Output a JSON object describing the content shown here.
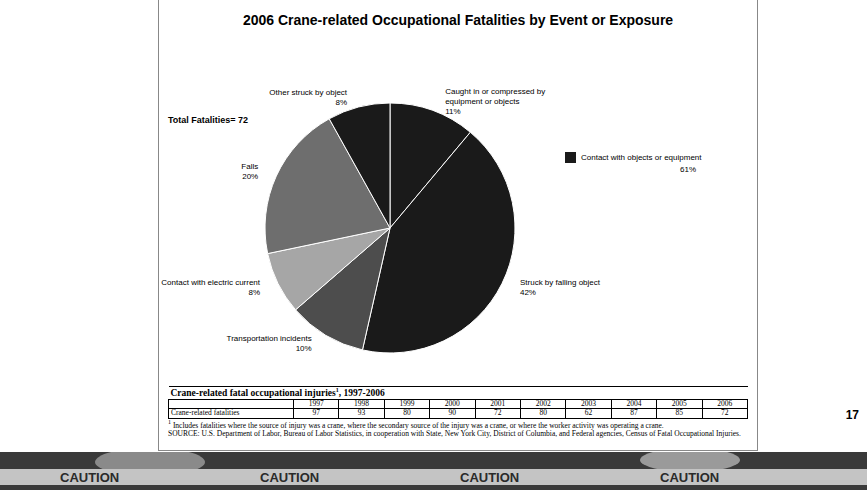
{
  "chart_data": {
    "type": "pie",
    "title": "2006 Crane-related Occupational Fatalities by Event or Exposure",
    "categories": [
      "Caught in or compressed by equipment or objects",
      "Struck by falling object",
      "Transportation incidents",
      "Contact with electric current",
      "Falls",
      "Other struck by object"
    ],
    "values": [
      11,
      42,
      10,
      8,
      20,
      8
    ],
    "value_labels": [
      "11%",
      "42%",
      "10%",
      "8%",
      "20%",
      "8%"
    ],
    "colors": [
      "#1a1a1a",
      "#1a1a1a",
      "#4d4d4d",
      "#a6a6a6",
      "#6e6e6e",
      "#1a1a1a"
    ],
    "data_labels": true,
    "annotations": [
      {
        "text": "Total Fatalities= 72"
      },
      {
        "text": "Contact with objects or equipment",
        "subtext": "61%",
        "color": "#1a1a1a"
      }
    ]
  },
  "table": {
    "title": "Crane-related fatal occupational injuries",
    "title_note": "1",
    "title_end": ", 1997-2006",
    "columns": [
      1997,
      1998,
      1999,
      2000,
      2001,
      2002,
      2003,
      2004,
      2005,
      2006
    ],
    "row_label": "Crane-related fatalities",
    "values": [
      97,
      93,
      80,
      90,
      72,
      80,
      62,
      87,
      85,
      72
    ],
    "footnote_mark": "1",
    "footnote": "Includes fatalities where the source of injury was a crane, where the secondary source of the injury was a crane, or where the worker activity was operating a crane.",
    "source": "SOURCE: U.S. Department of Labor, Bureau of Labor Statistics, in cooperation with State, New York City, District of Columbia, and Federal agencies, Census of Fatal Occupational Injuries."
  },
  "slide": {
    "number": "17",
    "tape_text": "CAUTION"
  }
}
